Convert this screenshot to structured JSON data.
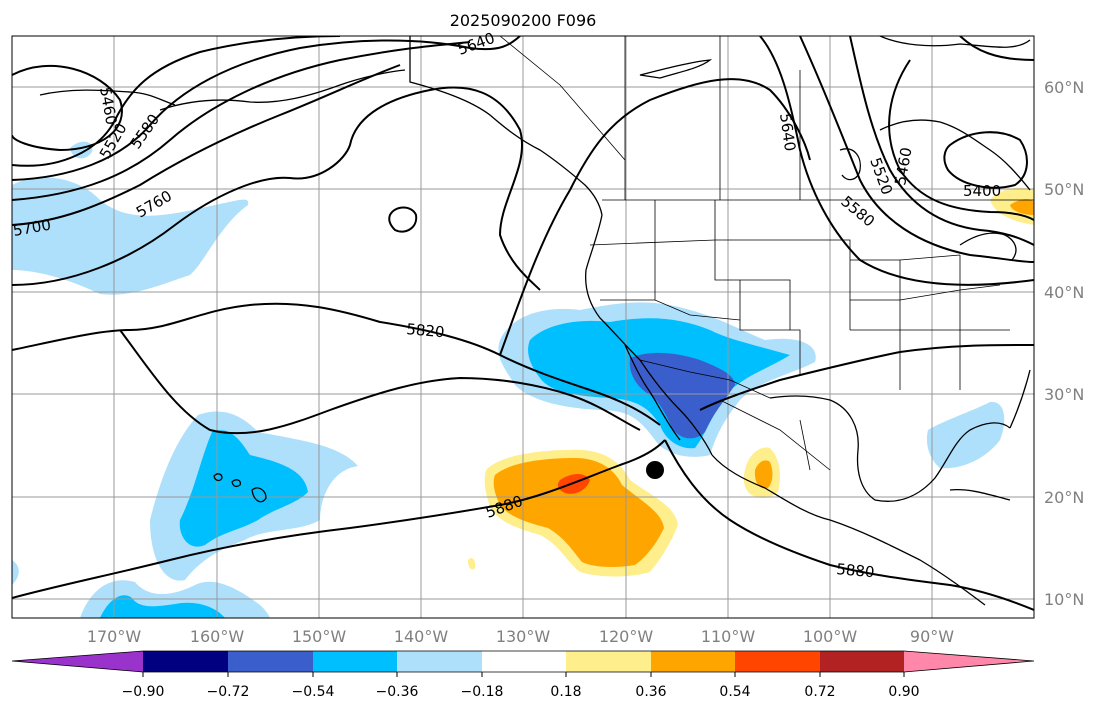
{
  "title": "2025090200 F096",
  "lat_labels": [
    "60°N",
    "50°N",
    "40°N",
    "30°N",
    "20°N",
    "10°N"
  ],
  "lon_labels": [
    "170°W",
    "160°W",
    "150°W",
    "140°W",
    "130°W",
    "120°W",
    "110°W",
    "100°W",
    "90°W"
  ],
  "colorbar": {
    "colors": [
      "#9933cc",
      "#000080",
      "#3a5fcd",
      "#00bfff",
      "#afe0fb",
      "#ffffff",
      "#ffee8c",
      "#ffa500",
      "#ff4500",
      "#b22222",
      "#ff88aa"
    ],
    "tick_labels": [
      "−0.90",
      "−0.72",
      "−0.54",
      "−0.36",
      "−0.18",
      "0.18",
      "0.36",
      "0.54",
      "0.72",
      "0.90"
    ]
  },
  "contour_labels": {
    "c5400": "5400",
    "c5460_w": "5460",
    "c5460_e": "5460",
    "c5520_w": "5520",
    "c5520_e": "5520",
    "c5580_w": "5580",
    "c5580_e": "5580",
    "c5640_n": "5640",
    "c5640_e": "5640",
    "c5700": "5700",
    "c5760": "5760",
    "c5820": "5820",
    "c5880_w": "5880",
    "c5880_e": "5880"
  },
  "colors": {
    "neg_light": "#afe0fb",
    "neg_mid": "#00bfff",
    "neg_dark": "#3a5fcd",
    "pos_light": "#ffee8c",
    "pos_mid": "#ffa500",
    "pos_dark": "#ff4500"
  }
}
